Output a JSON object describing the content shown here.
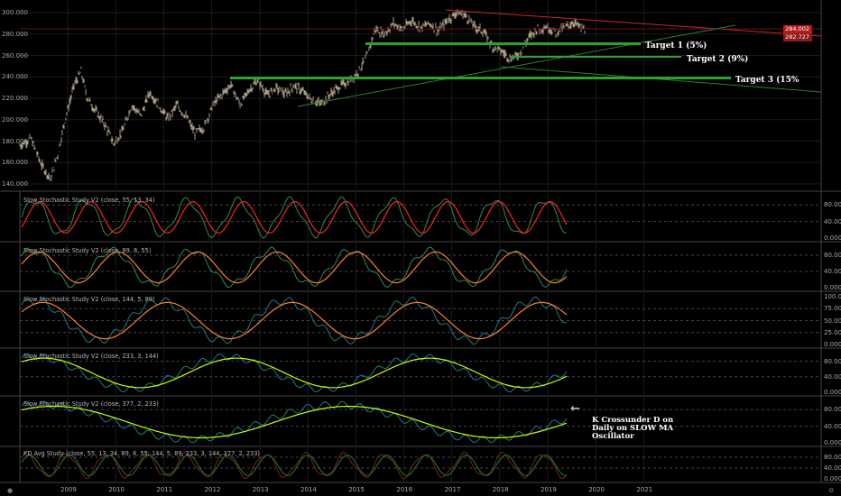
{
  "colors": {
    "background": "#000000",
    "grid": "#1a1a1a",
    "pane_border": "#444444",
    "candle": "#c9b99a",
    "resistance_line": "#c62828",
    "support_line": "#2e7d32",
    "target_line": "#2fa12f",
    "stoch_k": "#2e8b57",
    "stoch_d": "#ff2222",
    "stoch_d_orange": "#ff7f27",
    "stoch_d_yellow": "#c6ff00",
    "stoch_k_cyan": "#1e7b8a",
    "last_price_bg": "#b71c1c",
    "prev_price_bg": "#8b1a1a"
  },
  "main_pane": {
    "price_ticks": [
      "300.000",
      "280.000",
      "260.000",
      "240.000",
      "220.000",
      "200.000",
      "180.000",
      "160.000",
      "140.000"
    ],
    "last_price": "284.002",
    "prev_price": "282.727",
    "annotations": [
      "Target 1 (5%)",
      "Target 2 (9%)",
      "Target 3 (15%"
    ]
  },
  "oscillator_panes": [
    {
      "title": "Slow Stochastic Study V2 (close, 55, 13, 34)",
      "ticks": [
        "80.000",
        "40.000",
        "0.000"
      ]
    },
    {
      "title": "Slow Stochastic Study V2 (close, 89, 8, 55)",
      "ticks": [
        "80.000",
        "40.000",
        "0.000"
      ]
    },
    {
      "title": "Slow Stochastic Study V2 (close, 144, 5, 89)",
      "ticks": [
        "100.000",
        "75.000",
        "50.000",
        "25.000",
        "0.000"
      ]
    },
    {
      "title": "Slow Stochastic Study V2 (close, 233, 3, 144)",
      "ticks": [
        "80.000",
        "40.000",
        "0.000"
      ]
    },
    {
      "title": "Slow Stochastic Study V2 (close, 377, 2, 233)",
      "ticks": [
        "80.000",
        "40.000",
        "0.000"
      ]
    },
    {
      "title": "KD Avg Study (close, 55, 13, 34, 89, 8, 55, 144, 5, 89, 233, 3, 144, 377, 2, 233)",
      "ticks": [
        "80.000",
        "40.000",
        "0.000"
      ]
    }
  ],
  "crossunder_note": {
    "lines": [
      "K Crossunder D on",
      "Daily on SLOW MA",
      "Oscillator"
    ]
  },
  "time_axis": {
    "labels": [
      "2009",
      "2010",
      "2011",
      "2012",
      "2013",
      "2014",
      "2015",
      "2016",
      "2017",
      "2018",
      "2019",
      "2020",
      "2021"
    ]
  },
  "icons": {
    "bottom_left": "tradingview-logo-icon",
    "bottom_right": "settings-icon",
    "arrow": "left-arrow-icon"
  }
}
